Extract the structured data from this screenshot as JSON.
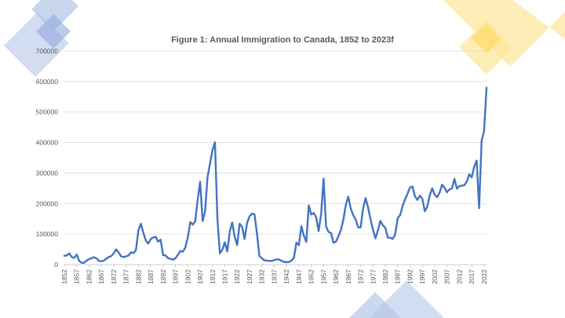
{
  "colors": {
    "line": "#4472C4",
    "deco_blue": "#B4C7E7",
    "deco_blue_dark": "#8FAADC",
    "deco_yellow": "#FFE699",
    "deco_yellow_dark": "#FFD966",
    "grid": "#D9D9D9",
    "text": "#595959"
  },
  "chart_data": {
    "type": "line",
    "title": "Figure 1: Annual Immigration to Canada, 1852 to 2023f",
    "xlabel": "",
    "ylabel": "",
    "xlim": [
      1852,
      2023
    ],
    "ylim": [
      0,
      700000
    ],
    "y_ticks": [
      0,
      100000,
      200000,
      300000,
      400000,
      500000,
      600000,
      700000
    ],
    "x_tick_labels": [
      "1852",
      "1857",
      "1862",
      "1867",
      "1872",
      "1877",
      "1882",
      "1887",
      "1892",
      "1897",
      "1902",
      "1907",
      "1912",
      "1917",
      "1922",
      "1927",
      "1932",
      "1937",
      "1942",
      "1947",
      "1952",
      "1957",
      "1962",
      "1967",
      "1972",
      "1977",
      "1982",
      "1987",
      "1992",
      "1997",
      "2002",
      "2007",
      "2012",
      "2017",
      "2022"
    ],
    "grid": true,
    "legend": "none",
    "series": [
      {
        "x": [
          1852,
          1853,
          1854,
          1855,
          1856,
          1857,
          1858,
          1859,
          1860,
          1861,
          1862,
          1863,
          1864,
          1865,
          1866,
          1867,
          1868,
          1869,
          1870,
          1871,
          1872,
          1873,
          1874,
          1875,
          1876,
          1877,
          1878,
          1879,
          1880,
          1881,
          1882,
          1883,
          1884,
          1885,
          1886,
          1887,
          1888,
          1889,
          1890,
          1891,
          1892,
          1893,
          1894,
          1895,
          1896,
          1897,
          1898,
          1899,
          1900,
          1901,
          1902,
          1903,
          1904,
          1905,
          1906,
          1907,
          1908,
          1909,
          1910,
          1911,
          1912,
          1913,
          1914,
          1915,
          1916,
          1917,
          1918,
          1919,
          1920,
          1921,
          1922,
          1923,
          1924,
          1925,
          1926,
          1927,
          1928,
          1929,
          1930,
          1931,
          1932,
          1933,
          1934,
          1935,
          1936,
          1937,
          1938,
          1939,
          1940,
          1941,
          1942,
          1943,
          1944,
          1945,
          1946,
          1947,
          1948,
          1949,
          1950,
          1951,
          1952,
          1953,
          1954,
          1955,
          1956,
          1957,
          1958,
          1959,
          1960,
          1961,
          1962,
          1963,
          1964,
          1965,
          1966,
          1967,
          1968,
          1969,
          1970,
          1971,
          1972,
          1973,
          1974,
          1975,
          1976,
          1977,
          1978,
          1979,
          1980,
          1981,
          1982,
          1983,
          1984,
          1985,
          1986,
          1987,
          1988,
          1989,
          1990,
          1991,
          1992,
          1993,
          1994,
          1995,
          1996,
          1997,
          1998,
          1999,
          2000,
          2001,
          2002,
          2003,
          2004,
          2005,
          2006,
          2007,
          2008,
          2009,
          2010,
          2011,
          2012,
          2013,
          2014,
          2015,
          2016,
          2017,
          2018,
          2019,
          2020,
          2021,
          2022,
          2023
        ],
        "values": [
          29000,
          30000,
          37000,
          25000,
          22000,
          33000,
          12000,
          6000,
          6000,
          13000,
          18000,
          21000,
          24000,
          21000,
          12000,
          11000,
          13000,
          19000,
          25000,
          28000,
          37000,
          50000,
          40000,
          27000,
          25000,
          27000,
          30000,
          40000,
          38000,
          48000,
          112000,
          134000,
          104000,
          79000,
          69000,
          84000,
          89000,
          91000,
          75000,
          82000,
          31000,
          30000,
          21000,
          19000,
          16000,
          21000,
          32000,
          45000,
          42000,
          56000,
          89000,
          139000,
          131000,
          142000,
          212000,
          272000,
          143000,
          174000,
          287000,
          331000,
          375000,
          401000,
          150000,
          37000,
          49000,
          73000,
          43000,
          109000,
          138000,
          91000,
          64000,
          134000,
          124000,
          84000,
          136000,
          158000,
          167000,
          165000,
          104000,
          28000,
          21000,
          14000,
          13000,
          12000,
          12000,
          15000,
          17000,
          17000,
          12000,
          9000,
          8000,
          9000,
          13000,
          23000,
          72000,
          64000,
          126000,
          95000,
          74000,
          194000,
          164000,
          169000,
          155000,
          110000,
          165000,
          282000,
          125000,
          107000,
          104000,
          72000,
          75000,
          93000,
          113000,
          147000,
          195000,
          223000,
          184000,
          162000,
          148000,
          122000,
          122000,
          184000,
          218000,
          188000,
          149000,
          115000,
          86000,
          112000,
          143000,
          129000,
          121000,
          89000,
          88000,
          84000,
          99000,
          152000,
          162000,
          192000,
          214000,
          232000,
          253000,
          256000,
          224000,
          212000,
          226000,
          216000,
          175000,
          190000,
          227000,
          250000,
          229000,
          221000,
          236000,
          262000,
          252000,
          237000,
          247000,
          249000,
          281000,
          249000,
          257000,
          259000,
          260000,
          272000,
          296000,
          286000,
          321000,
          341000,
          185000,
          406000,
          437000,
          580000
        ]
      }
    ]
  }
}
